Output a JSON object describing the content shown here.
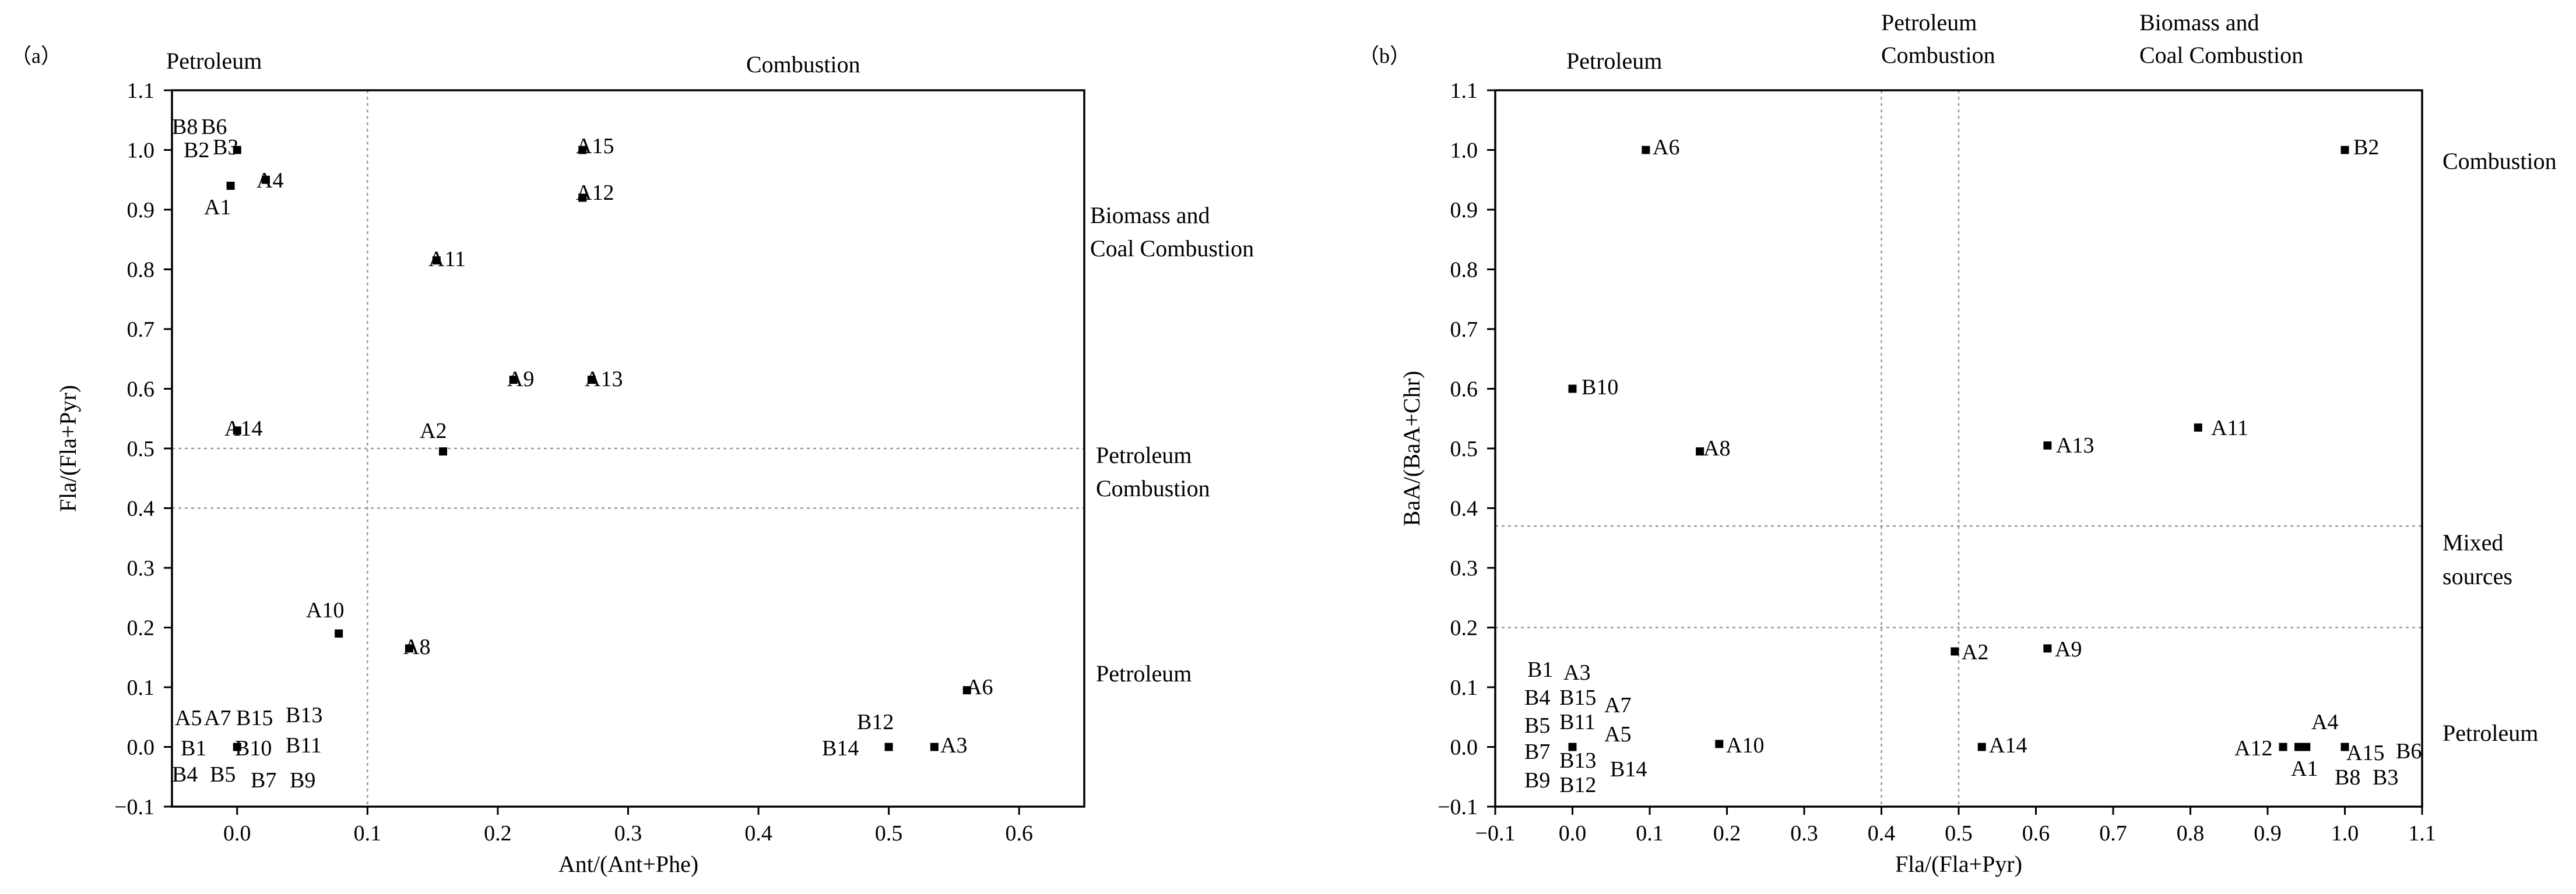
{
  "chart_data": [
    {
      "panel_label": "（a）",
      "type": "scatter",
      "xlabel": "Ant/(Ant+Phe)",
      "ylabel": "Fla/(Fla+Pyr)",
      "xlim": [
        -0.05,
        0.65
      ],
      "ylim": [
        -0.1,
        1.1
      ],
      "xticks": [
        0.0,
        0.1,
        0.2,
        0.3,
        0.4,
        0.5,
        0.6
      ],
      "xtick_labels": [
        "0.0",
        "0.1",
        "0.2",
        "0.3",
        "0.4",
        "0.5",
        "0.6"
      ],
      "yticks": [
        -0.1,
        0.0,
        0.1,
        0.2,
        0.3,
        0.4,
        0.5,
        0.6,
        0.7,
        0.8,
        0.9,
        1.0,
        1.1
      ],
      "ytick_labels": [
        "−0.1",
        "0.0",
        "0.1",
        "0.2",
        "0.3",
        "0.4",
        "0.5",
        "0.6",
        "0.7",
        "0.8",
        "0.9",
        "1.0",
        "1.1"
      ],
      "vlines": [
        0.1
      ],
      "hlines": [
        0.4,
        0.5
      ],
      "region_labels": [
        "Petroleum",
        "Combustion",
        "Biomass and",
        "Coal Combustion",
        "Petroleum",
        "Combustion",
        "Petroleum"
      ],
      "points": [
        {
          "x": 0.0,
          "y": 1.0
        },
        {
          "x": -0.005,
          "y": 0.94
        },
        {
          "x": 0.022,
          "y": 0.95
        },
        {
          "x": 0.265,
          "y": 1.0
        },
        {
          "x": 0.265,
          "y": 0.92
        },
        {
          "x": 0.153,
          "y": 0.815
        },
        {
          "x": 0.212,
          "y": 0.615
        },
        {
          "x": 0.272,
          "y": 0.615
        },
        {
          "x": 0.0,
          "y": 0.53
        },
        {
          "x": 0.158,
          "y": 0.495
        },
        {
          "x": 0.078,
          "y": 0.19
        },
        {
          "x": 0.132,
          "y": 0.165
        },
        {
          "x": 0.56,
          "y": 0.095
        },
        {
          "x": 0.0,
          "y": 0.0
        },
        {
          "x": 0.5,
          "y": 0.0
        },
        {
          "x": 0.535,
          "y": 0.0
        }
      ],
      "point_labels": [
        "B8",
        "B6",
        "B2",
        "B3",
        "A1",
        "A4",
        "A15",
        "A12",
        "A11",
        "A9",
        "A13",
        "A14",
        "A2",
        "A10",
        "A8",
        "A6",
        "A5",
        "A7",
        "B15",
        "B13",
        "B1",
        "B10",
        "B11",
        "B4",
        "B5",
        "B7",
        "B9",
        "B12",
        "B14",
        "A3"
      ]
    },
    {
      "panel_label": "（b）",
      "type": "scatter",
      "xlabel": "Fla/(Fla+Pyr)",
      "ylabel": "BaA/(BaA+Chr)",
      "xlim": [
        -0.1,
        1.1
      ],
      "ylim": [
        -0.1,
        1.1
      ],
      "xticks": [
        -0.1,
        0.0,
        0.1,
        0.2,
        0.3,
        0.4,
        0.5,
        0.6,
        0.7,
        0.8,
        0.9,
        1.0,
        1.1
      ],
      "xtick_labels": [
        "−0.1",
        "0.0",
        "0.1",
        "0.2",
        "0.3",
        "0.4",
        "0.5",
        "0.6",
        "0.7",
        "0.8",
        "0.9",
        "1.0",
        "1.1"
      ],
      "yticks": [
        -0.1,
        0.0,
        0.1,
        0.2,
        0.3,
        0.4,
        0.5,
        0.6,
        0.7,
        0.8,
        0.9,
        1.0,
        1.1
      ],
      "ytick_labels": [
        "−0.1",
        "0.0",
        "0.1",
        "0.2",
        "0.3",
        "0.4",
        "0.5",
        "0.6",
        "0.7",
        "0.8",
        "0.9",
        "1.0",
        "1.1"
      ],
      "vlines": [
        0.4,
        0.5
      ],
      "hlines": [
        0.2,
        0.37
      ],
      "region_labels": [
        "Petroleum",
        "Petroleum",
        "Combustion",
        "Biomass and",
        "Coal Combustion",
        "Combustion",
        "Mixed",
        "sources",
        "Petroleum"
      ],
      "points": [
        {
          "x": 0.095,
          "y": 1.0
        },
        {
          "x": 1.0,
          "y": 1.0
        },
        {
          "x": 0.0,
          "y": 0.6
        },
        {
          "x": 0.165,
          "y": 0.495
        },
        {
          "x": 0.615,
          "y": 0.505
        },
        {
          "x": 0.81,
          "y": 0.535
        },
        {
          "x": 0.495,
          "y": 0.16
        },
        {
          "x": 0.615,
          "y": 0.165
        },
        {
          "x": 0.0,
          "y": 0.0
        },
        {
          "x": 0.19,
          "y": 0.005
        },
        {
          "x": 0.53,
          "y": 0.0
        },
        {
          "x": 0.92,
          "y": 0.0
        },
        {
          "x": 0.94,
          "y": 0.0
        },
        {
          "x": 0.95,
          "y": 0.0
        },
        {
          "x": 1.0,
          "y": 0.0
        }
      ],
      "point_labels": [
        "A6",
        "B2",
        "B10",
        "A8",
        "A13",
        "A11",
        "A2",
        "A9",
        "B1",
        "A3",
        "B4",
        "B15",
        "A7",
        "B5",
        "B11",
        "A5",
        "B7",
        "B13",
        "B14",
        "B9",
        "B12",
        "A10",
        "A14",
        "A12",
        "A4",
        "A1",
        "A15",
        "B6",
        "B8",
        "B3"
      ]
    }
  ]
}
